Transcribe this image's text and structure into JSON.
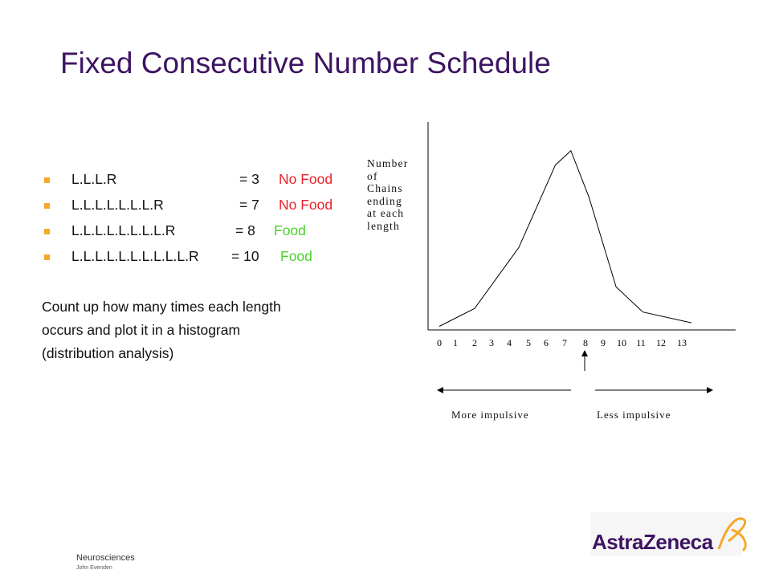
{
  "title": "Fixed Consecutive Number Schedule",
  "bullets": [
    {
      "chain": "L.L.L.R",
      "eq": "= 3",
      "result": "No Food",
      "result_color": "#e8212b"
    },
    {
      "chain": "L.L.L.L.L.L.L.R",
      "eq": "= 7",
      "result": "No Food",
      "result_color": "#e8212b"
    },
    {
      "chain": "L.L.L.L.L.L.L.L.R",
      "eq": "= 8",
      "result": "Food",
      "result_color": "#4ad12a"
    },
    {
      "chain": "L.L.L.L.L.L.L.L.L.L.R",
      "eq": "= 10",
      "result": "Food",
      "result_color": "#4ad12a"
    }
  ],
  "paragraph": "Count up how many times each length occurs and plot it in a histogram (distribution analysis)",
  "chart_data": {
    "type": "line",
    "ylabel": "Number of Chains ending at each length",
    "ylabel_lines": [
      "Number",
      "of",
      "Chains",
      "ending",
      "at each",
      "length"
    ],
    "x": [
      0,
      1,
      2,
      3,
      4,
      5,
      6,
      7,
      8,
      9,
      10,
      11,
      12,
      13
    ],
    "x_tick_labels": [
      "0",
      "1",
      "2",
      "3",
      "4",
      "5",
      "6",
      "7",
      "8",
      "9",
      "10",
      "11",
      "12",
      "13"
    ],
    "points": [
      [
        0,
        1
      ],
      [
        2,
        6
      ],
      [
        4.5,
        23
      ],
      [
        6.5,
        46
      ],
      [
        7.3,
        50
      ],
      [
        8.2,
        37
      ],
      [
        9.7,
        12
      ],
      [
        11.1,
        5
      ],
      [
        13.5,
        2
      ]
    ],
    "ylim": [
      0,
      58
    ],
    "grid": false,
    "marker_label_below": "8",
    "left_arrow_label": "More impulsive",
    "right_arrow_label": "Less impulsive"
  },
  "footer": {
    "line1": "Neurosciences",
    "line2": "John Evenden"
  },
  "logo": {
    "text": "AstraZeneca",
    "color": "#3d1462",
    "accent": "#f5a82a"
  },
  "colors": {
    "title": "#3d1462",
    "bullet": "#f5a82a"
  }
}
